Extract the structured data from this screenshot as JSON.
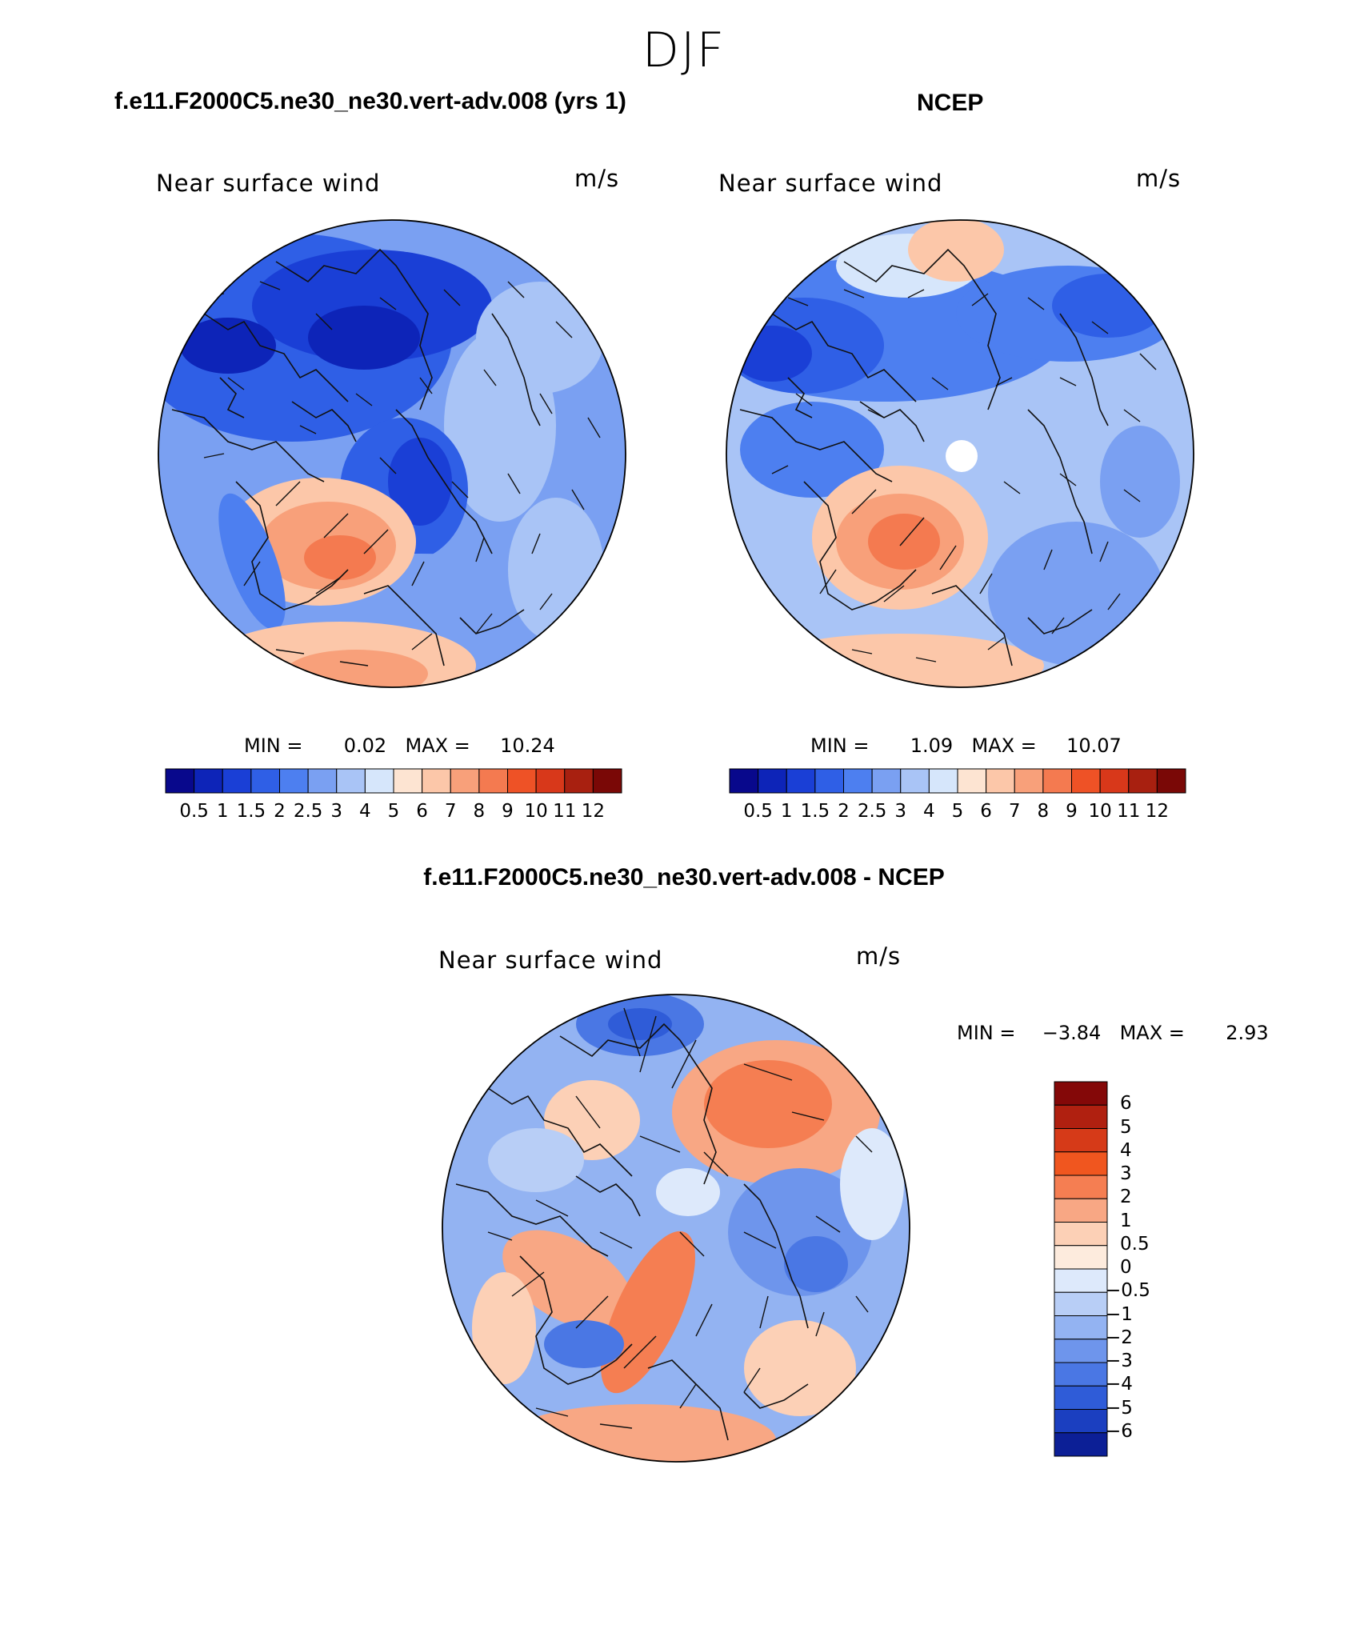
{
  "season": "DJF",
  "panels": [
    {
      "title": "f.e11.F2000C5.ne30_ne30.vert-adv.008 (yrs 1)",
      "variable": "Near surface wind",
      "units": "m/s",
      "min_label": "MIN =",
      "min_value": "0.02",
      "max_label": "MAX =",
      "max_value": "10.24"
    },
    {
      "title": "NCEP",
      "variable": "Near surface wind",
      "units": "m/s",
      "min_label": "MIN =",
      "min_value": "1.09",
      "max_label": "MAX =",
      "max_value": "10.07"
    },
    {
      "title": "f.e11.F2000C5.ne30_ne30.vert-adv.008 - NCEP",
      "variable": "Near surface wind",
      "units": "m/s",
      "min_label": "MIN =",
      "min_value": "−3.84",
      "max_label": "MAX =",
      "max_value": "2.93"
    }
  ],
  "abs_colorbar": {
    "colors": [
      "#08088c",
      "#0d24b8",
      "#1a3fd6",
      "#2f5fe6",
      "#4d7ff0",
      "#7aa0f2",
      "#a9c4f6",
      "#d6e6fb",
      "#fde4d2",
      "#fcc7a9",
      "#f8a07a",
      "#f47a50",
      "#ee5226",
      "#d8381a",
      "#a82010",
      "#7a0806"
    ],
    "labels": [
      "0.5",
      "1",
      "1.5",
      "2",
      "2.5",
      "3",
      "4",
      "5",
      "6",
      "7",
      "8",
      "9",
      "10",
      "11",
      "12"
    ]
  },
  "diff_colorbar": {
    "colors": [
      "#840808",
      "#b02010",
      "#d63a18",
      "#f0561f",
      "#f57e52",
      "#f8a784",
      "#fcd0b6",
      "#fdebdd",
      "#dde9fb",
      "#b8cef6",
      "#93b3f2",
      "#6e95ec",
      "#4a77e4",
      "#2f5cd8",
      "#1b3fc0",
      "#0c1f96"
    ],
    "labels": [
      "6",
      "5",
      "4",
      "3",
      "2",
      "1",
      "0.5",
      "0",
      "−0.5",
      "−1",
      "−2",
      "−3",
      "−4",
      "−5",
      "−6"
    ]
  }
}
